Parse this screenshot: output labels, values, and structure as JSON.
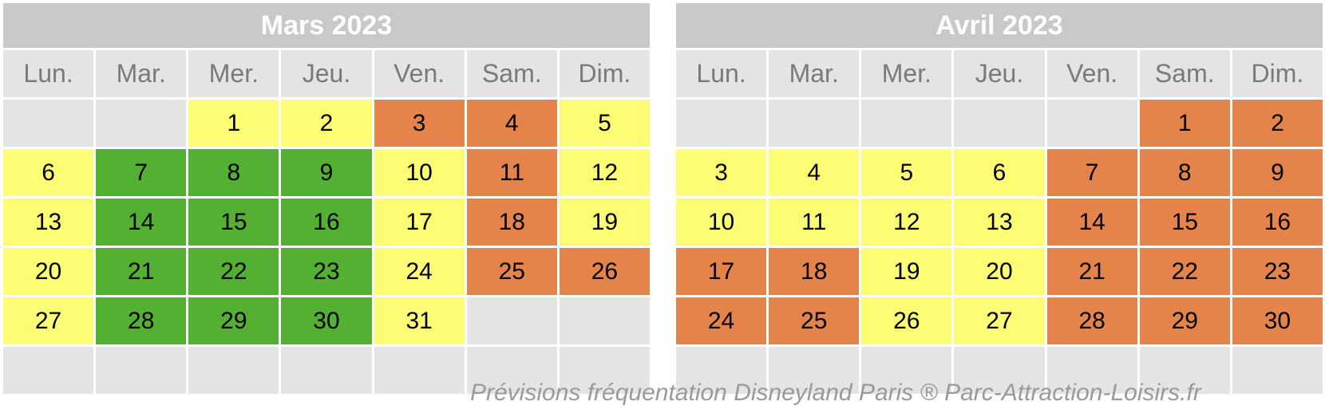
{
  "weekdays": [
    "Lun.",
    "Mar.",
    "Mer.",
    "Jeu.",
    "Ven.",
    "Sam.",
    "Dim."
  ],
  "colors": {
    "empty": "#e4e4e4",
    "low": "#fdfd75",
    "very-low": "#53b033",
    "high": "#e5844a",
    "title_bg": "#c9c9c9"
  },
  "calendars": [
    {
      "title": "Mars 2023",
      "days": [
        {
          "day": "",
          "level": "empty"
        },
        {
          "day": "",
          "level": "empty"
        },
        {
          "day": "1",
          "level": "low"
        },
        {
          "day": "2",
          "level": "low"
        },
        {
          "day": "3",
          "level": "high"
        },
        {
          "day": "4",
          "level": "high"
        },
        {
          "day": "5",
          "level": "low"
        },
        {
          "day": "6",
          "level": "low"
        },
        {
          "day": "7",
          "level": "very-low"
        },
        {
          "day": "8",
          "level": "very-low"
        },
        {
          "day": "9",
          "level": "very-low"
        },
        {
          "day": "10",
          "level": "low"
        },
        {
          "day": "11",
          "level": "high"
        },
        {
          "day": "12",
          "level": "low"
        },
        {
          "day": "13",
          "level": "low"
        },
        {
          "day": "14",
          "level": "very-low"
        },
        {
          "day": "15",
          "level": "very-low"
        },
        {
          "day": "16",
          "level": "very-low"
        },
        {
          "day": "17",
          "level": "low"
        },
        {
          "day": "18",
          "level": "high"
        },
        {
          "day": "19",
          "level": "low"
        },
        {
          "day": "20",
          "level": "low"
        },
        {
          "day": "21",
          "level": "very-low"
        },
        {
          "day": "22",
          "level": "very-low"
        },
        {
          "day": "23",
          "level": "very-low"
        },
        {
          "day": "24",
          "level": "low"
        },
        {
          "day": "25",
          "level": "high"
        },
        {
          "day": "26",
          "level": "high"
        },
        {
          "day": "27",
          "level": "low"
        },
        {
          "day": "28",
          "level": "very-low"
        },
        {
          "day": "29",
          "level": "very-low"
        },
        {
          "day": "30",
          "level": "very-low"
        },
        {
          "day": "31",
          "level": "low"
        },
        {
          "day": "",
          "level": "empty"
        },
        {
          "day": "",
          "level": "empty"
        },
        {
          "day": "",
          "level": "empty"
        },
        {
          "day": "",
          "level": "empty"
        },
        {
          "day": "",
          "level": "empty"
        },
        {
          "day": "",
          "level": "empty"
        },
        {
          "day": "",
          "level": "empty"
        },
        {
          "day": "",
          "level": "empty"
        },
        {
          "day": "",
          "level": "empty"
        }
      ]
    },
    {
      "title": "Avril 2023",
      "days": [
        {
          "day": "",
          "level": "empty"
        },
        {
          "day": "",
          "level": "empty"
        },
        {
          "day": "",
          "level": "empty"
        },
        {
          "day": "",
          "level": "empty"
        },
        {
          "day": "",
          "level": "empty"
        },
        {
          "day": "1",
          "level": "high"
        },
        {
          "day": "2",
          "level": "high"
        },
        {
          "day": "3",
          "level": "low"
        },
        {
          "day": "4",
          "level": "low"
        },
        {
          "day": "5",
          "level": "low"
        },
        {
          "day": "6",
          "level": "low"
        },
        {
          "day": "7",
          "level": "high"
        },
        {
          "day": "8",
          "level": "high"
        },
        {
          "day": "9",
          "level": "high"
        },
        {
          "day": "10",
          "level": "low"
        },
        {
          "day": "11",
          "level": "low"
        },
        {
          "day": "12",
          "level": "low"
        },
        {
          "day": "13",
          "level": "low"
        },
        {
          "day": "14",
          "level": "high"
        },
        {
          "day": "15",
          "level": "high"
        },
        {
          "day": "16",
          "level": "high"
        },
        {
          "day": "17",
          "level": "high"
        },
        {
          "day": "18",
          "level": "high"
        },
        {
          "day": "19",
          "level": "low"
        },
        {
          "day": "20",
          "level": "low"
        },
        {
          "day": "21",
          "level": "high"
        },
        {
          "day": "22",
          "level": "high"
        },
        {
          "day": "23",
          "level": "high"
        },
        {
          "day": "24",
          "level": "high"
        },
        {
          "day": "25",
          "level": "high"
        },
        {
          "day": "26",
          "level": "low"
        },
        {
          "day": "27",
          "level": "low"
        },
        {
          "day": "28",
          "level": "high"
        },
        {
          "day": "29",
          "level": "high"
        },
        {
          "day": "30",
          "level": "high"
        },
        {
          "day": "",
          "level": "empty"
        },
        {
          "day": "",
          "level": "empty"
        },
        {
          "day": "",
          "level": "empty"
        },
        {
          "day": "",
          "level": "empty"
        },
        {
          "day": "",
          "level": "empty"
        },
        {
          "day": "",
          "level": "empty"
        },
        {
          "day": "",
          "level": "empty"
        }
      ]
    }
  ],
  "footer": "Prévisions fréquentation Disneyland Paris  ® Parc-Attraction-Loisirs.fr"
}
